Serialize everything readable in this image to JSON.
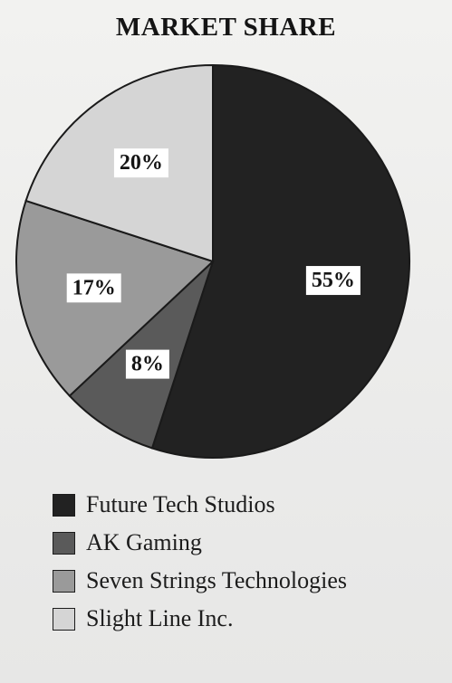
{
  "chart_data": {
    "type": "pie",
    "title": "MARKET SHARE",
    "slices": [
      {
        "name": "Future Tech Studios",
        "value": 55,
        "label": "55%",
        "color": "#222222"
      },
      {
        "name": "AK Gaming",
        "value": 8,
        "label": "8%",
        "color": "#5a5a5a"
      },
      {
        "name": "Seven Strings Technologies",
        "value": 17,
        "label": "17%",
        "color": "#9a9a9a"
      },
      {
        "name": "Slight Line Inc.",
        "value": 20,
        "label": "20%",
        "color": "#d5d5d5"
      }
    ],
    "legend_placement": "bottom"
  }
}
